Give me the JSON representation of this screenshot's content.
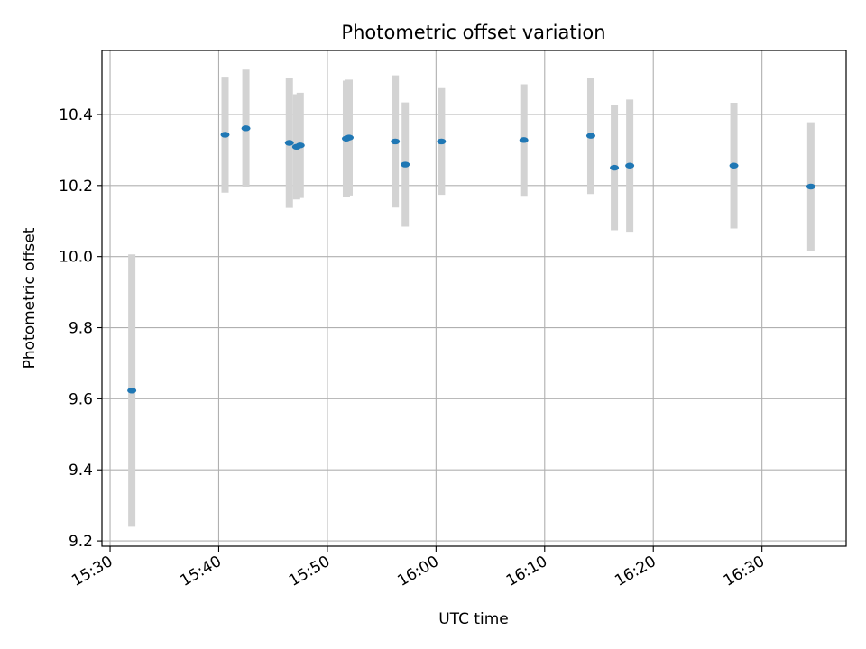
{
  "chart_data": {
    "type": "scatter",
    "title": "Photometric offset variation",
    "xlabel": "UTC time",
    "ylabel": "Photometric offset",
    "x_is_time": true,
    "xlim": [
      "15:29:15",
      "16:37:45"
    ],
    "ylim": [
      9.185,
      10.58
    ],
    "grid": true,
    "x_ticks": [
      "15:30",
      "15:40",
      "15:50",
      "16:00",
      "16:10",
      "16:20",
      "16:30"
    ],
    "y_ticks": [
      "9.2",
      "9.4",
      "9.6",
      "9.8",
      "10.0",
      "10.2",
      "10.4"
    ],
    "colors": {
      "marker": "#1f77b4",
      "errorbar": "#d3d3d3",
      "grid": "#b0b0b0"
    },
    "points": [
      {
        "t": "15:32:00",
        "y": 9.623,
        "yerr": 0.383
      },
      {
        "t": "15:40:35",
        "y": 10.343,
        "yerr": 0.163
      },
      {
        "t": "15:42:30",
        "y": 10.361,
        "yerr": 0.165
      },
      {
        "t": "15:46:30",
        "y": 10.32,
        "yerr": 0.183
      },
      {
        "t": "15:47:10",
        "y": 10.309,
        "yerr": 0.148
      },
      {
        "t": "15:47:30",
        "y": 10.313,
        "yerr": 0.148
      },
      {
        "t": "15:51:45",
        "y": 10.332,
        "yerr": 0.163
      },
      {
        "t": "15:52:00",
        "y": 10.335,
        "yerr": 0.163
      },
      {
        "t": "15:56:15",
        "y": 10.324,
        "yerr": 0.186
      },
      {
        "t": "15:57:10",
        "y": 10.259,
        "yerr": 0.175
      },
      {
        "t": "16:00:30",
        "y": 10.324,
        "yerr": 0.15
      },
      {
        "t": "16:08:05",
        "y": 10.328,
        "yerr": 0.157
      },
      {
        "t": "16:14:15",
        "y": 10.34,
        "yerr": 0.164
      },
      {
        "t": "16:16:25",
        "y": 10.25,
        "yerr": 0.176
      },
      {
        "t": "16:17:50",
        "y": 10.256,
        "yerr": 0.186
      },
      {
        "t": "16:27:25",
        "y": 10.256,
        "yerr": 0.177
      },
      {
        "t": "16:34:30",
        "y": 10.197,
        "yerr": 0.181
      }
    ]
  }
}
